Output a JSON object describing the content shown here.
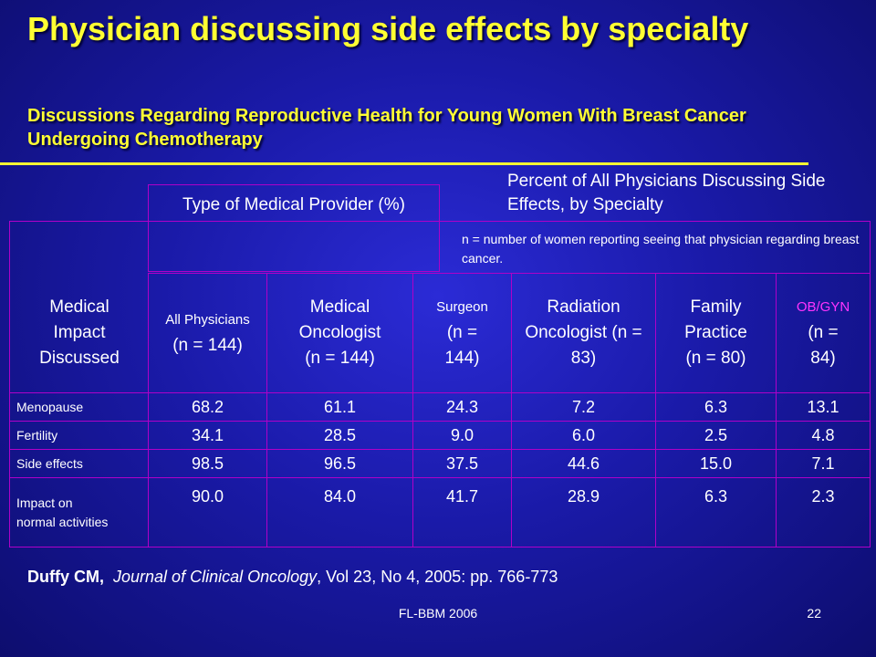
{
  "title": "Physician discussing side effects by specialty",
  "subtitle": "Discussions Regarding Reproductive Health for Young Women With Breast Cancer Undergoing Chemotherapy",
  "percent_heading": "Percent of All Physicians Discussing Side Effects, by Specialty",
  "type_heading": "Type of Medical Provider (%)",
  "n_note": "n = number of women reporting seeing that physician regarding breast cancer.",
  "table": {
    "row_header": "Medical Impact Discussed",
    "columns": [
      {
        "name": "All Physicians",
        "n": "(n = 144)"
      },
      {
        "name": "Medical Oncologist",
        "n": "(n = 144)"
      },
      {
        "name": "Surgeon",
        "n": "(n = 144)"
      },
      {
        "name": "Radiation Oncologist (n = 83)",
        "n": ""
      },
      {
        "name": "Family Practice",
        "n": "(n = 80)"
      },
      {
        "name": "OB/GYN",
        "n": "(n = 84)"
      }
    ],
    "rows": [
      {
        "label": "Menopause",
        "values": [
          "68.2",
          "61.1",
          "24.3",
          "7.2",
          "6.3",
          "13.1"
        ]
      },
      {
        "label": "Fertility",
        "values": [
          "34.1",
          "28.5",
          "9.0",
          "6.0",
          "2.5",
          "4.8"
        ]
      },
      {
        "label": "Side effects",
        "values": [
          "98.5",
          "96.5",
          "37.5",
          "44.6",
          "15.0",
          "7.1"
        ]
      },
      {
        "label": "Impact on normal activities",
        "values": [
          "90.0",
          "84.0",
          "41.7",
          "28.9",
          "6.3",
          "2.3"
        ]
      }
    ]
  },
  "citation": {
    "author": "Duffy CM,",
    "journal": "Journal of Clinical Oncology",
    "details": ", Vol 23, No 4, 2005: pp. 766-773"
  },
  "footer": {
    "left": "FL-BBM 2006",
    "page": "22"
  },
  "colors": {
    "title": "#ffff33",
    "grid": "#b000c8",
    "obgyn": "#ff33ff"
  }
}
